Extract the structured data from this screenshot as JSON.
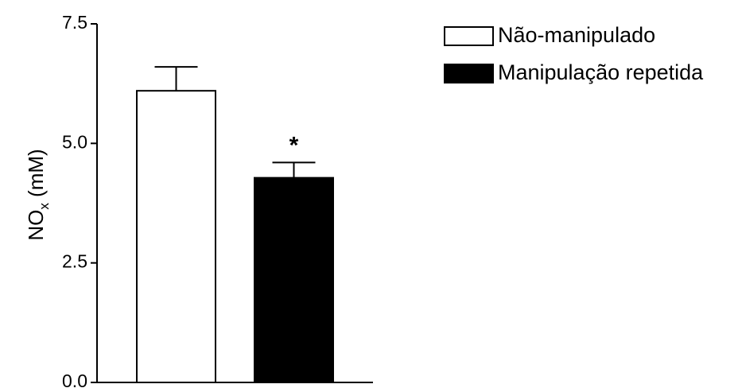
{
  "chart_data": {
    "type": "bar",
    "title": "",
    "ylabel": {
      "main": "NO",
      "sub": "x",
      "unit": " (mM)"
    },
    "ylim": [
      0,
      7.5
    ],
    "yticks": [
      0,
      2.5,
      5,
      7.5
    ],
    "ytick_labels": [
      "0.0",
      "2.5",
      "5.0",
      "7.5"
    ],
    "categories": [
      "Não-manipulado",
      "Manipulação repetida"
    ],
    "series": [
      {
        "values": [
          6.1,
          4.28
        ],
        "errors": [
          0.5,
          0.32
        ],
        "fills": [
          "#ffffff",
          "#000000"
        ]
      }
    ],
    "legend": {
      "placement": "top-right",
      "items": [
        {
          "label": "Não-manipulado",
          "fill": "#ffffff"
        },
        {
          "label": "Manipulação repetida",
          "fill": "#000000"
        }
      ]
    },
    "annotations": [
      {
        "category_index": 1,
        "text": "*"
      }
    ],
    "grid": false
  }
}
